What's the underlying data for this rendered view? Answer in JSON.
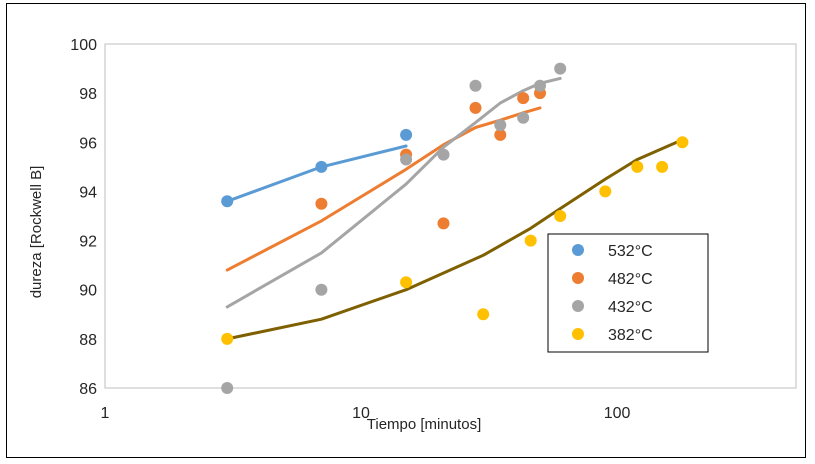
{
  "chart_data": {
    "type": "scatter",
    "xscale": "log",
    "xlim": [
      1,
      500
    ],
    "ylim": [
      86,
      100
    ],
    "yticks": [
      86,
      88,
      90,
      92,
      94,
      96,
      98,
      100
    ],
    "xticks": [
      1,
      10,
      100
    ],
    "xtick_labels": [
      "1",
      "10",
      "100"
    ],
    "xlabel": "Tiempo  [minutos]",
    "ylabel": "dureza [Rockwell B]",
    "grid": false,
    "legend_position": "right",
    "series": [
      {
        "name": "532°C",
        "color": "#5B9BD5",
        "points": [
          [
            3,
            93.6
          ],
          [
            7,
            95.0
          ],
          [
            15,
            96.3
          ]
        ],
        "trend_color": "#5B9BD5",
        "trend": [
          [
            3,
            93.6
          ],
          [
            7,
            95.0
          ],
          [
            15,
            95.85
          ]
        ]
      },
      {
        "name": "482°C",
        "color": "#ED7D31",
        "points": [
          [
            7,
            93.5
          ],
          [
            15,
            95.5
          ],
          [
            21,
            92.7
          ],
          [
            28,
            97.4
          ],
          [
            35,
            96.3
          ],
          [
            43,
            97.8
          ],
          [
            50,
            98.0
          ]
        ],
        "trend_color": "#ED7D31",
        "trend": [
          [
            3,
            90.8
          ],
          [
            7,
            92.8
          ],
          [
            15,
            94.9
          ],
          [
            21,
            95.9
          ],
          [
            28,
            96.6
          ],
          [
            35,
            96.9
          ],
          [
            43,
            97.2
          ],
          [
            50,
            97.4
          ]
        ]
      },
      {
        "name": "432°C",
        "color": "#A5A5A5",
        "points": [
          [
            3,
            86.0
          ],
          [
            7,
            90.0
          ],
          [
            15,
            95.3
          ],
          [
            21,
            95.5
          ],
          [
            28,
            98.3
          ],
          [
            35,
            96.7
          ],
          [
            43,
            97.0
          ],
          [
            50,
            98.3
          ],
          [
            60,
            99.0
          ]
        ],
        "trend_color": "#A5A5A5",
        "trend": [
          [
            3,
            89.3
          ],
          [
            7,
            91.5
          ],
          [
            15,
            94.3
          ],
          [
            21,
            95.8
          ],
          [
            28,
            96.8
          ],
          [
            35,
            97.6
          ],
          [
            43,
            98.1
          ],
          [
            50,
            98.4
          ],
          [
            60,
            98.6
          ]
        ]
      },
      {
        "name": "382°C",
        "color": "#FFC000",
        "points": [
          [
            3,
            88.0
          ],
          [
            15,
            90.3
          ],
          [
            30,
            89.0
          ],
          [
            46,
            92.0
          ],
          [
            60,
            93.0
          ],
          [
            90,
            94.0
          ],
          [
            120,
            95.0
          ],
          [
            150,
            95.0
          ],
          [
            180,
            96.0
          ]
        ],
        "trend_color": "#7F6000",
        "trend": [
          [
            3,
            88.0
          ],
          [
            7,
            88.8
          ],
          [
            15,
            90.0
          ],
          [
            30,
            91.4
          ],
          [
            46,
            92.5
          ],
          [
            60,
            93.3
          ],
          [
            90,
            94.5
          ],
          [
            120,
            95.3
          ],
          [
            180,
            96.1
          ]
        ]
      }
    ]
  }
}
